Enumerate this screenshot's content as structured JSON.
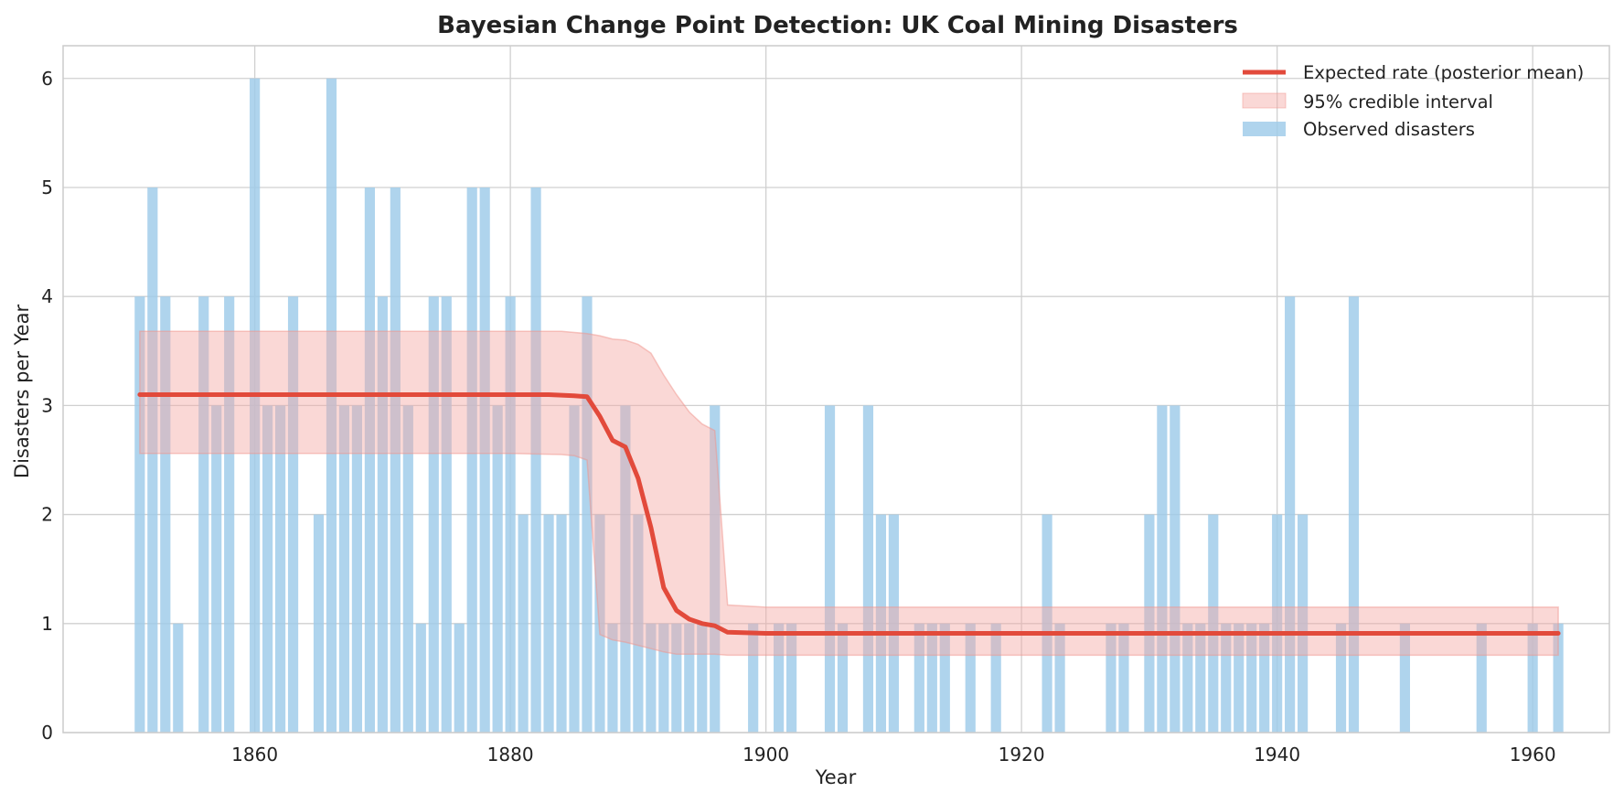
{
  "chart_data": {
    "type": "bar",
    "title": "Bayesian Change Point Detection: UK Coal Mining Disasters",
    "xlabel": "Year",
    "ylabel": "Disasters per Year",
    "xlim": [
      1845,
      1966
    ],
    "ylim": [
      0,
      6.3
    ],
    "xticks": [
      1860,
      1880,
      1900,
      1920,
      1940,
      1960
    ],
    "yticks": [
      0,
      1,
      2,
      3,
      4,
      5,
      6
    ],
    "grid": true,
    "legend_position": "top-right",
    "colors": {
      "bars": "#9ecae9",
      "line": "#e24a3b",
      "band_fill": "#f4a9a3",
      "band_edge": "#f0938b",
      "grid": "#d0d0d0",
      "axes_edge": "#cccccc"
    },
    "legend": [
      {
        "label": "Expected rate (posterior mean)",
        "kind": "line"
      },
      {
        "label": "95% credible interval",
        "kind": "band"
      },
      {
        "label": "Observed disasters",
        "kind": "bar"
      }
    ],
    "series": [
      {
        "name": "Observed disasters",
        "kind": "bar",
        "x": [
          1851,
          1852,
          1853,
          1854,
          1855,
          1856,
          1857,
          1858,
          1859,
          1860,
          1861,
          1862,
          1863,
          1864,
          1865,
          1866,
          1867,
          1868,
          1869,
          1870,
          1871,
          1872,
          1873,
          1874,
          1875,
          1876,
          1877,
          1878,
          1879,
          1880,
          1881,
          1882,
          1883,
          1884,
          1885,
          1886,
          1887,
          1888,
          1889,
          1890,
          1891,
          1892,
          1893,
          1894,
          1895,
          1896,
          1897,
          1898,
          1899,
          1900,
          1901,
          1902,
          1903,
          1904,
          1905,
          1906,
          1907,
          1908,
          1909,
          1910,
          1911,
          1912,
          1913,
          1914,
          1915,
          1916,
          1917,
          1918,
          1919,
          1920,
          1921,
          1922,
          1923,
          1924,
          1925,
          1926,
          1927,
          1928,
          1929,
          1930,
          1931,
          1932,
          1933,
          1934,
          1935,
          1936,
          1937,
          1938,
          1939,
          1940,
          1941,
          1942,
          1943,
          1944,
          1945,
          1946,
          1947,
          1948,
          1949,
          1950,
          1951,
          1952,
          1953,
          1954,
          1955,
          1956,
          1957,
          1958,
          1959,
          1960,
          1961,
          1962
        ],
        "values": [
          4,
          5,
          4,
          1,
          0,
          4,
          3,
          4,
          0,
          6,
          3,
          3,
          4,
          0,
          2,
          6,
          3,
          3,
          5,
          4,
          5,
          3,
          1,
          4,
          4,
          1,
          5,
          5,
          3,
          4,
          2,
          5,
          2,
          2,
          3,
          4,
          2,
          1,
          3,
          2,
          1,
          1,
          1,
          1,
          1,
          3,
          0,
          0,
          1,
          0,
          1,
          1,
          0,
          0,
          3,
          1,
          0,
          3,
          2,
          2,
          0,
          1,
          1,
          1,
          0,
          1,
          0,
          1,
          0,
          0,
          0,
          2,
          1,
          0,
          0,
          0,
          1,
          1,
          0,
          2,
          3,
          3,
          1,
          1,
          2,
          1,
          1,
          1,
          1,
          2,
          4,
          2,
          0,
          0,
          1,
          4,
          0,
          0,
          0,
          1,
          0,
          0,
          0,
          0,
          0,
          1,
          0,
          0,
          0,
          1,
          0,
          1
        ]
      },
      {
        "name": "Expected rate (posterior mean)",
        "kind": "line",
        "x": [
          1851,
          1855,
          1860,
          1865,
          1870,
          1875,
          1880,
          1883,
          1885,
          1886,
          1887,
          1888,
          1889,
          1890,
          1891,
          1892,
          1893,
          1894,
          1895,
          1896,
          1897,
          1900,
          1910,
          1920,
          1930,
          1940,
          1950,
          1960,
          1962
        ],
        "values": [
          3.1,
          3.1,
          3.1,
          3.1,
          3.1,
          3.1,
          3.1,
          3.1,
          3.09,
          3.08,
          2.9,
          2.68,
          2.62,
          2.33,
          1.88,
          1.33,
          1.12,
          1.04,
          1.0,
          0.98,
          0.92,
          0.91,
          0.91,
          0.91,
          0.91,
          0.91,
          0.91,
          0.91,
          0.91
        ]
      },
      {
        "name": "95% credible interval",
        "kind": "band",
        "x": [
          1851,
          1860,
          1870,
          1880,
          1884,
          1885,
          1886,
          1887,
          1888,
          1889,
          1890,
          1891,
          1892,
          1893,
          1894,
          1895,
          1896,
          1897,
          1900,
          1920,
          1940,
          1960,
          1962
        ],
        "lower": [
          2.56,
          2.56,
          2.56,
          2.56,
          2.55,
          2.54,
          2.5,
          0.9,
          0.85,
          0.83,
          0.8,
          0.77,
          0.74,
          0.72,
          0.72,
          0.72,
          0.72,
          0.71,
          0.71,
          0.71,
          0.71,
          0.71,
          0.71
        ],
        "upper": [
          3.68,
          3.68,
          3.68,
          3.68,
          3.68,
          3.67,
          3.66,
          3.64,
          3.61,
          3.6,
          3.56,
          3.48,
          3.28,
          3.1,
          2.94,
          2.83,
          2.77,
          1.17,
          1.15,
          1.15,
          1.15,
          1.15,
          1.15
        ]
      }
    ]
  }
}
